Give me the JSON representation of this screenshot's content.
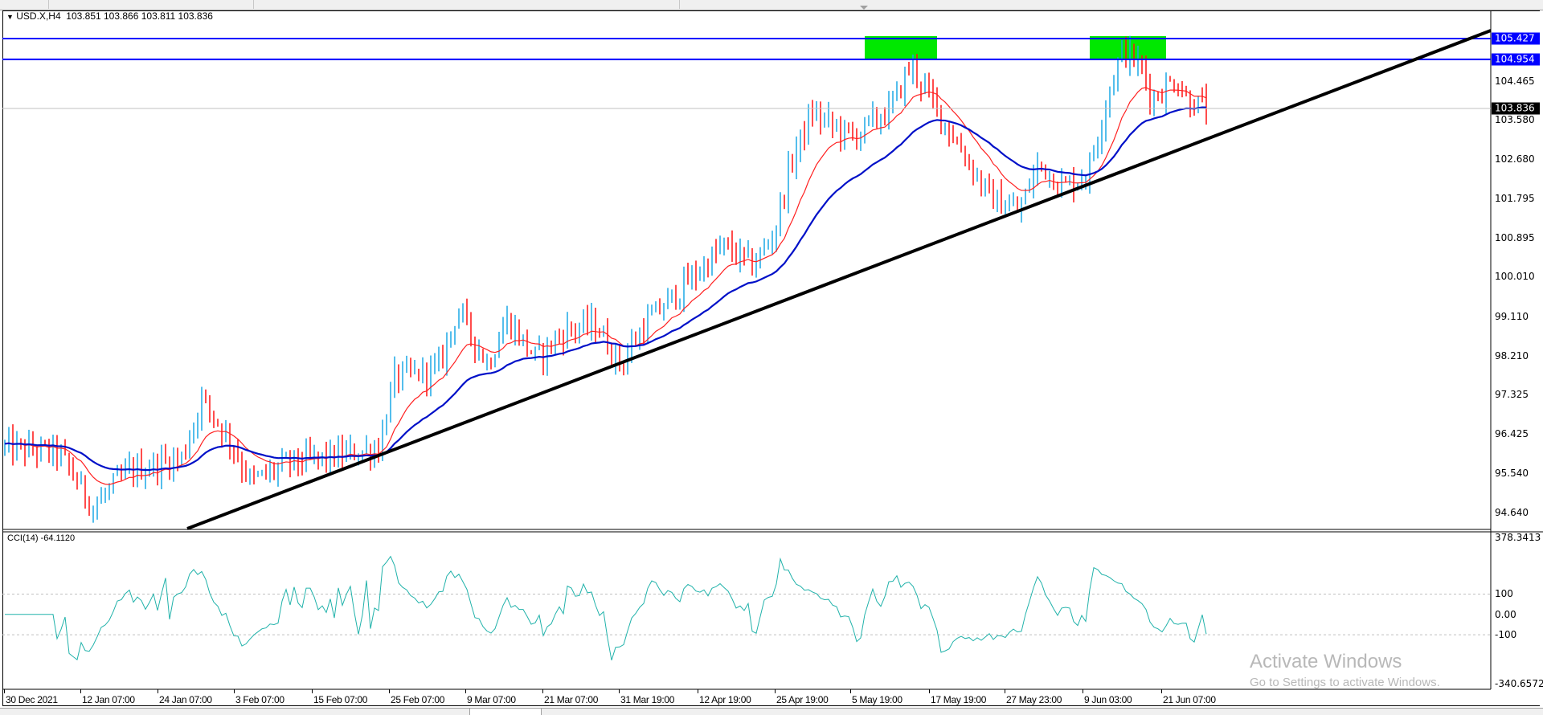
{
  "header": {
    "symbol_timeframe": "USD.X,H4",
    "ohlc": "103.851 103.866 103.811 103.836",
    "menu_icon": "triangle-down-icon"
  },
  "price_axis": {
    "ticks": [
      "104.465",
      "103.580",
      "102.680",
      "101.795",
      "100.895",
      "100.010",
      "99.110",
      "98.210",
      "97.325",
      "96.425",
      "95.540",
      "94.640"
    ],
    "tick_values": [
      104.465,
      103.58,
      102.68,
      101.795,
      100.895,
      100.01,
      99.11,
      98.21,
      97.325,
      96.425,
      95.54,
      94.64
    ],
    "line_labels": [
      "105.427",
      "104.954"
    ],
    "line_values": [
      105.427,
      104.954
    ],
    "current_label": "103.836",
    "current_value": 103.836
  },
  "indicator": {
    "label": "CCI(14) -64.1120",
    "axis_ticks": [
      "378.3413",
      "100",
      "0.00",
      "-100",
      "-340.6572"
    ],
    "axis_values": [
      378.3413,
      100,
      0,
      -100,
      -340.6572
    ]
  },
  "time_axis": [
    "30 Dec 2021",
    "12 Jan 07:00",
    "24 Jan 07:00",
    "3 Feb 07:00",
    "15 Feb 07:00",
    "25 Feb 07:00",
    "9 Mar 07:00",
    "21 Mar 07:00",
    "31 Mar 19:00",
    "12 Apr 19:00",
    "25 Apr 19:00",
    "5 May 19:00",
    "17 May 19:00",
    "27 May 23:00",
    "9 Jun 03:00",
    "21 Jun 07:00"
  ],
  "watermark": {
    "title": "Activate Windows",
    "subtitle": "Go to Settings to activate Windows."
  },
  "colors": {
    "bull": "#1aa8e6",
    "bear": "#ff1010",
    "ma_fast": "#ff2020",
    "ma_slow": "#0010c8",
    "hline": "#0000ff",
    "zone": "#00e800",
    "trendline": "#000000",
    "cci": "#20b2aa"
  },
  "chart_data": {
    "type": "candlestick",
    "symbol": "USD.X",
    "timeframe": "H4",
    "ylim": [
      94.64,
      105.427
    ],
    "bars": 300,
    "close_path": [
      [
        0,
        96.12
      ],
      [
        11,
        96.0
      ],
      [
        18,
        94.77
      ],
      [
        25,
        95.56
      ],
      [
        36,
        95.89
      ],
      [
        40,
        97.24
      ],
      [
        46,
        96.23
      ],
      [
        50,
        95.33
      ],
      [
        58,
        95.78
      ],
      [
        66,
        95.89
      ],
      [
        76,
        96.12
      ],
      [
        79,
        97.68
      ],
      [
        88,
        97.91
      ],
      [
        92,
        99.25
      ],
      [
        98,
        98.02
      ],
      [
        102,
        99.03
      ],
      [
        108,
        98.13
      ],
      [
        114,
        98.8
      ],
      [
        120,
        98.91
      ],
      [
        125,
        98.02
      ],
      [
        130,
        98.91
      ],
      [
        138,
        99.81
      ],
      [
        146,
        100.7
      ],
      [
        152,
        100.26
      ],
      [
        156,
        100.93
      ],
      [
        160,
        102.72
      ],
      [
        164,
        103.73
      ],
      [
        172,
        103.17
      ],
      [
        180,
        103.84
      ],
      [
        184,
        104.84
      ],
      [
        188,
        104.06
      ],
      [
        194,
        102.94
      ],
      [
        200,
        101.82
      ],
      [
        206,
        101.49
      ],
      [
        210,
        102.61
      ],
      [
        215,
        102.05
      ],
      [
        220,
        102.38
      ],
      [
        224,
        104.17
      ],
      [
        227,
        105.18
      ],
      [
        231,
        104.73
      ],
      [
        233,
        104.06
      ],
      [
        238,
        104.51
      ],
      [
        240,
        104.06
      ],
      [
        244,
        103.84
      ]
    ],
    "horizontal_lines": [
      105.427,
      104.954
    ],
    "current_price": 103.836,
    "moving_averages": [
      {
        "name": "fast",
        "period": 14,
        "color": "red"
      },
      {
        "name": "slow",
        "period": 34,
        "color": "blue"
      }
    ],
    "trendline": {
      "from": [
        38,
        94.64
      ],
      "to": [
        370,
        105.427
      ]
    },
    "zones": [
      {
        "from_bar": 214,
        "to_bar": 232,
        "low": 104.954,
        "high": 105.427
      },
      {
        "from_bar": 270,
        "to_bar": 289,
        "low": 104.954,
        "high": 105.427
      }
    ],
    "oscillator": {
      "name": "CCI",
      "period": 14,
      "ylim": [
        -340.6572,
        378.3413
      ],
      "levels": [
        100,
        -100
      ],
      "last": -64.112
    }
  }
}
